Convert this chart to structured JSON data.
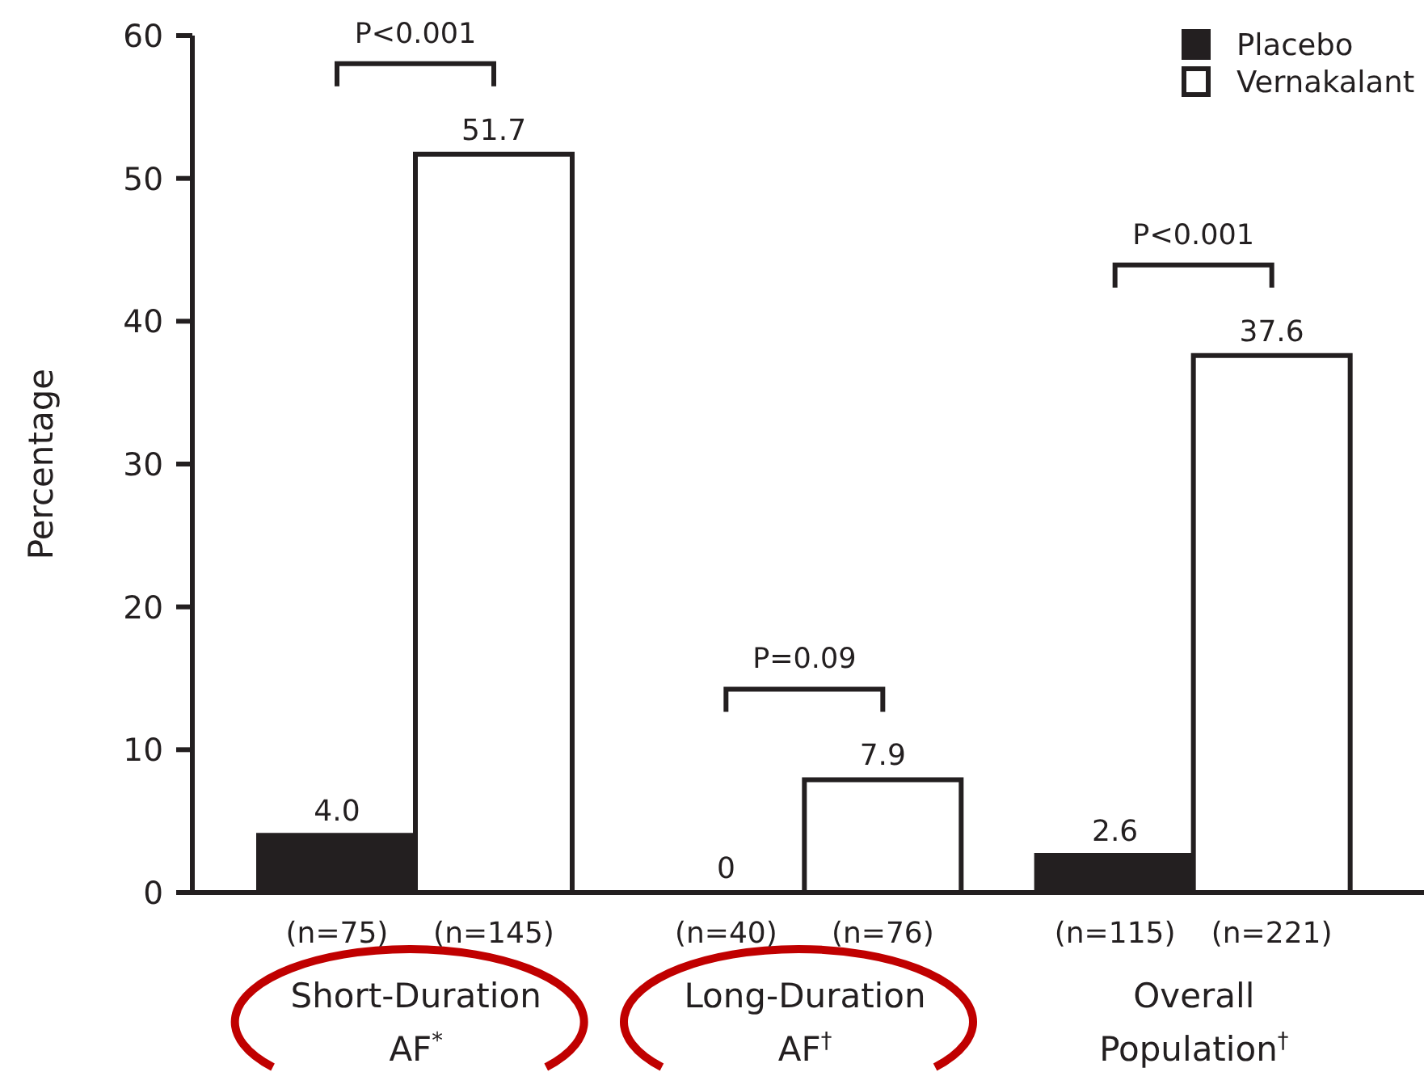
{
  "chart_data": {
    "type": "bar",
    "categories": [
      "Short-Duration AF$^{*}$",
      "Long-Duration AF$^{†}$",
      "Overall Population$^{†}$"
    ],
    "series": [
      {
        "name": "Placebo",
        "color": "#231f20",
        "values": [
          4.0,
          0,
          2.6
        ],
        "value_labels": [
          "4.0",
          "0",
          "2.6"
        ]
      },
      {
        "name": "Vernakalant",
        "color": "#ffffff",
        "values": [
          51.7,
          7.9,
          37.6
        ],
        "value_labels": [
          "51.7",
          "7.9",
          "37.6"
        ]
      }
    ],
    "ylabel": "Percentage",
    "ylim": [
      0,
      60
    ],
    "yticks": [
      0,
      10,
      20,
      30,
      40,
      50,
      60
    ],
    "legend": "top right",
    "annotations": [
      "(n=75)",
      "(n=145)",
      "(n=40)",
      "(n=76)",
      "(n=115)",
      "(n=221)",
      "P<0.001",
      "P=0.09",
      "P<0.001"
    ]
  }
}
